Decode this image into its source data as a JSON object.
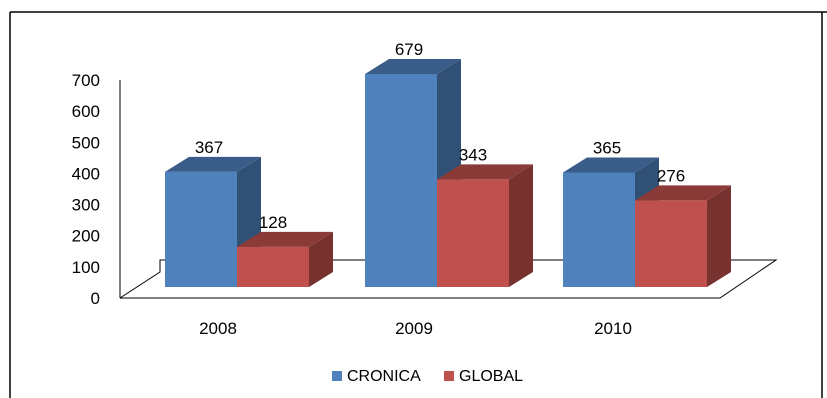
{
  "chart_data": {
    "type": "bar",
    "title": "",
    "xlabel": "",
    "ylabel": "",
    "categories": [
      "2008",
      "2009",
      "2010"
    ],
    "series": [
      {
        "name": "CRONICA",
        "values": [
          367,
          679,
          365
        ],
        "color": "#4F81BD"
      },
      {
        "name": "GLOBAL",
        "values": [
          128,
          343,
          276
        ],
        "color": "#C0504D"
      }
    ],
    "data_labels": {
      "CRONICA": [
        "367",
        "679",
        "365"
      ],
      "GLOBAL": [
        "128",
        "343",
        "276"
      ]
    },
    "ylim": [
      0,
      700
    ],
    "yticks": [
      "0",
      "100",
      "200",
      "300",
      "400",
      "500",
      "600",
      "700"
    ],
    "grid": false,
    "legend_position": "bottom",
    "style": "3d-clustered-column"
  }
}
